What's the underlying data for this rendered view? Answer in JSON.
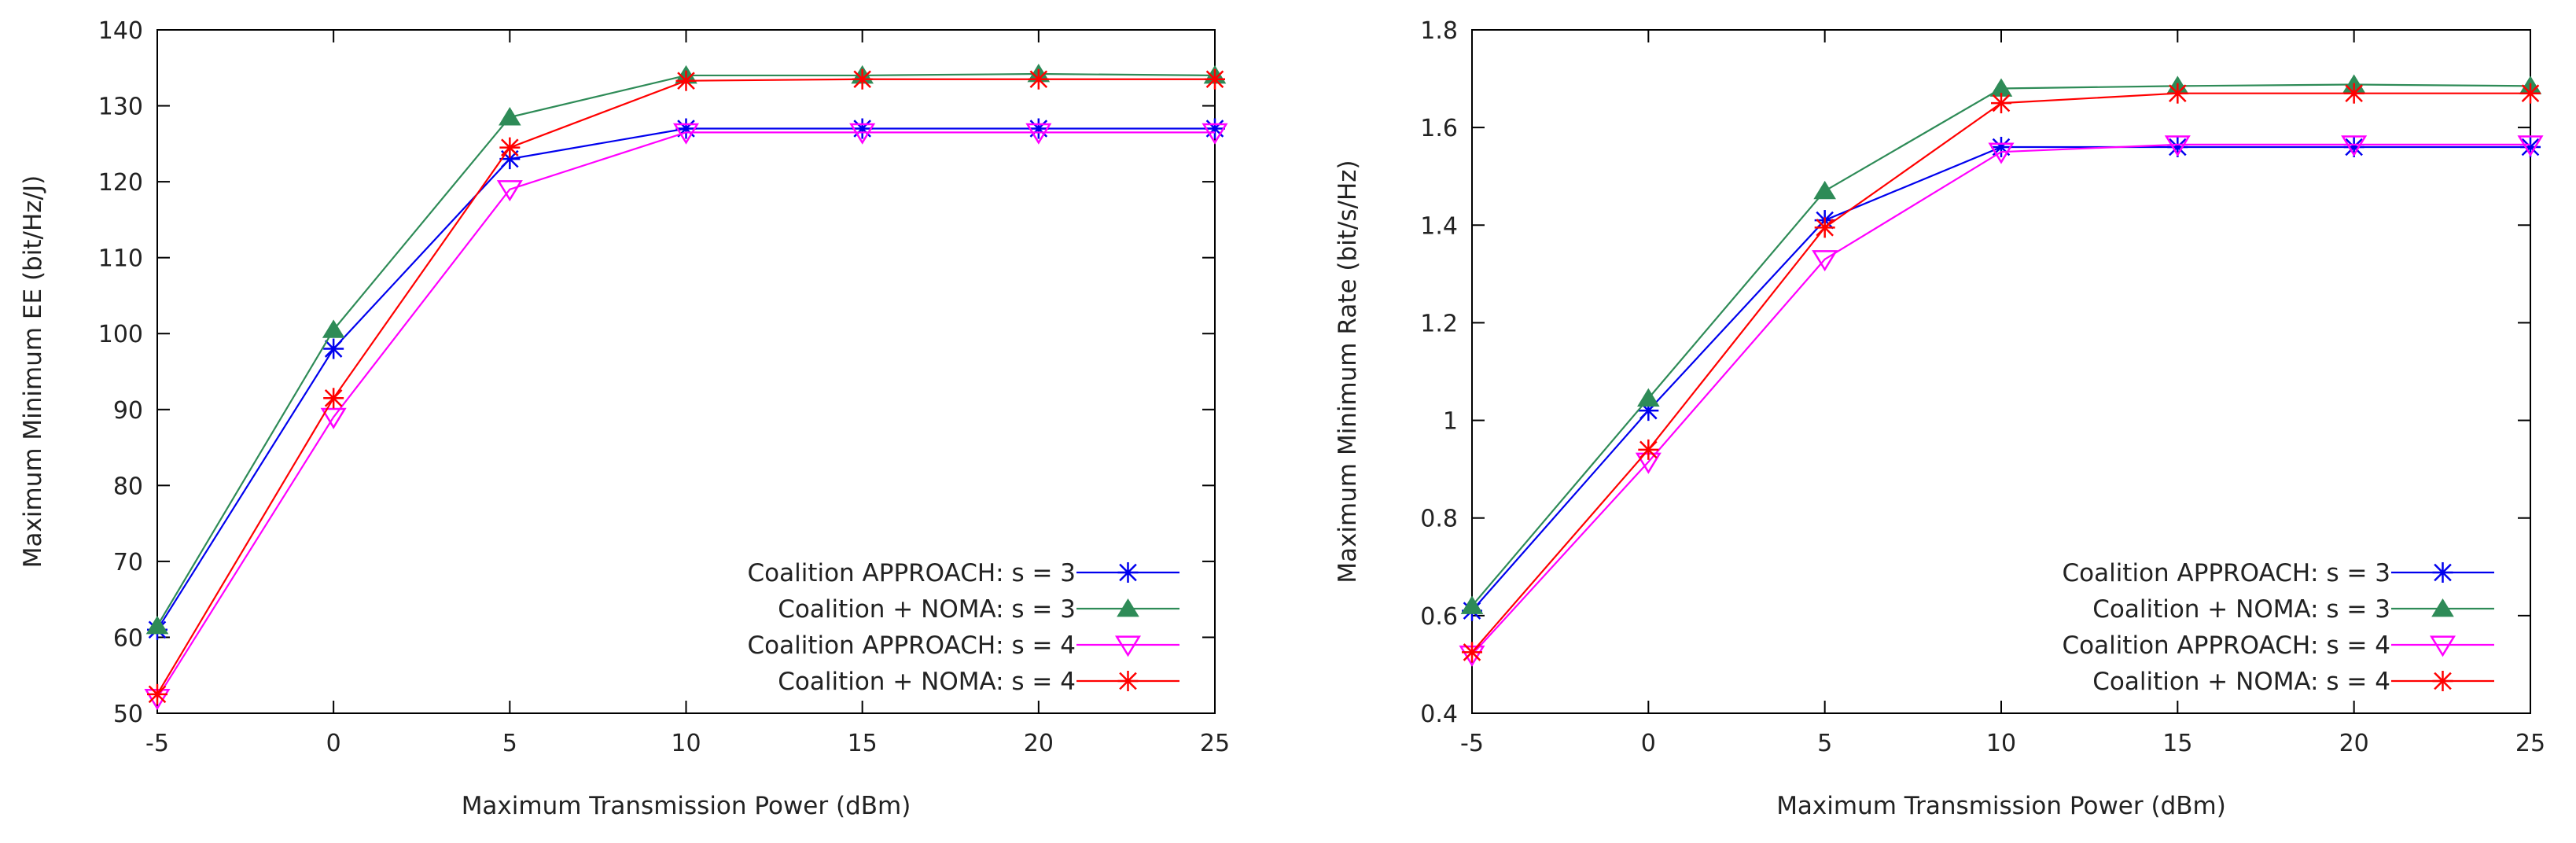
{
  "chart_data": [
    {
      "type": "line",
      "title": "",
      "xlabel": "Maximum Transmission Power (dBm)",
      "ylabel": "Maximum Minimum EE (bit/Hz/J)",
      "xlim": [
        -5,
        25
      ],
      "ylim": [
        50,
        140
      ],
      "x": [
        -5,
        0,
        5,
        10,
        15,
        20,
        25
      ],
      "xticks": [
        -5,
        0,
        5,
        10,
        15,
        20,
        25
      ],
      "yticks": [
        50,
        60,
        70,
        80,
        90,
        100,
        110,
        120,
        130,
        140
      ],
      "grid": false,
      "legend_position": "bottom-right",
      "series": [
        {
          "name": "Coalition APPROACH: s = 3",
          "color": "#0000ee",
          "marker": "asterisk",
          "values": [
            61,
            98,
            123,
            127,
            127,
            127,
            127
          ]
        },
        {
          "name": "Coalition + NOMA: s = 3",
          "color": "#2e8b57",
          "marker": "triangle-up",
          "values": [
            61.5,
            100.5,
            128.5,
            134,
            134,
            134.2,
            134
          ]
        },
        {
          "name": "Coalition APPROACH: s = 4",
          "color": "#ff00ff",
          "marker": "triangle-down-open",
          "values": [
            52,
            89,
            119,
            126.5,
            126.5,
            126.5,
            126.5
          ]
        },
        {
          "name": "Coalition + NOMA: s = 4",
          "color": "#ff0000",
          "marker": "asterisk",
          "values": [
            52.5,
            91.5,
            124.5,
            133.3,
            133.5,
            133.5,
            133.5
          ]
        }
      ]
    },
    {
      "type": "line",
      "title": "",
      "xlabel": "Maximum Transmission Power (dBm)",
      "ylabel": "Maximum Minimum Rate (bit/s/Hz)",
      "xlim": [
        -5,
        25
      ],
      "ylim": [
        0.4,
        1.8
      ],
      "x": [
        -5,
        0,
        5,
        10,
        15,
        20,
        25
      ],
      "xticks": [
        -5,
        0,
        5,
        10,
        15,
        20,
        25
      ],
      "yticks": [
        0.4,
        0.6,
        0.8,
        1,
        1.2,
        1.4,
        1.6,
        1.8
      ],
      "grid": false,
      "legend_position": "bottom-right",
      "series": [
        {
          "name": "Coalition APPROACH: s = 3",
          "color": "#0000ee",
          "marker": "asterisk",
          "values": [
            0.61,
            1.02,
            1.41,
            1.56,
            1.56,
            1.56,
            1.56
          ]
        },
        {
          "name": "Coalition + NOMA: s = 3",
          "color": "#2e8b57",
          "marker": "triangle-up",
          "values": [
            0.62,
            1.045,
            1.47,
            1.68,
            1.685,
            1.688,
            1.685
          ]
        },
        {
          "name": "Coalition APPROACH: s = 4",
          "color": "#ff00ff",
          "marker": "triangle-down-open",
          "values": [
            0.52,
            0.915,
            1.33,
            1.55,
            1.565,
            1.565,
            1.565
          ]
        },
        {
          "name": "Coalition + NOMA: s = 4",
          "color": "#ff0000",
          "marker": "asterisk",
          "values": [
            0.525,
            0.94,
            1.395,
            1.65,
            1.67,
            1.67,
            1.67
          ]
        }
      ]
    }
  ]
}
